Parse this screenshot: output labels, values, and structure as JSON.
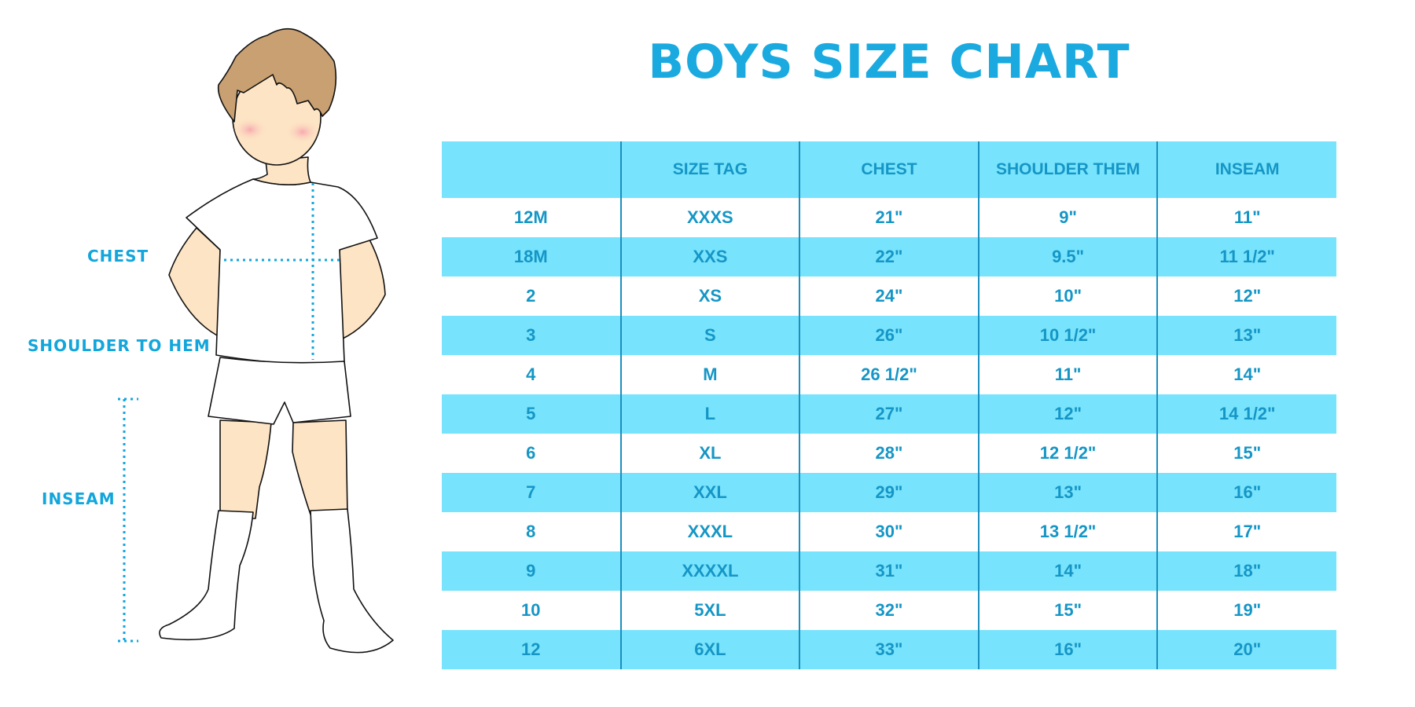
{
  "title": "BOYS SIZE CHART",
  "labels": {
    "chest": "CHEST",
    "shoulder_to_hem": "SHOULDER TO HEM",
    "inseam": "INSEAM"
  },
  "colors": {
    "accent": "#1aaae0",
    "stripe": "#78e3fc",
    "text": "#1596c6"
  },
  "table": {
    "headers": [
      "",
      "SIZE TAG",
      "CHEST",
      "SHOULDER THEM",
      "INSEAM"
    ],
    "rows": [
      [
        "12M",
        "XXXS",
        "21\"",
        "9\"",
        "11\""
      ],
      [
        "18M",
        "XXS",
        "22\"",
        "9.5\"",
        "11 1/2\""
      ],
      [
        "2",
        "XS",
        "24\"",
        "10\"",
        "12\""
      ],
      [
        "3",
        "S",
        "26\"",
        "10 1/2\"",
        "13\""
      ],
      [
        "4",
        "M",
        "26 1/2\"",
        "11\"",
        "14\""
      ],
      [
        "5",
        "L",
        "27\"",
        "12\"",
        "14 1/2\""
      ],
      [
        "6",
        "XL",
        "28\"",
        "12 1/2\"",
        "15\""
      ],
      [
        "7",
        "XXL",
        "29\"",
        "13\"",
        "16\""
      ],
      [
        "8",
        "XXXL",
        "30\"",
        "13 1/2\"",
        "17\""
      ],
      [
        "9",
        "XXXXL",
        "31\"",
        "14\"",
        "18\""
      ],
      [
        "10",
        "5XL",
        "32\"",
        "15\"",
        "19\""
      ],
      [
        "12",
        "6XL",
        "33\"",
        "16\"",
        "20\""
      ]
    ]
  }
}
